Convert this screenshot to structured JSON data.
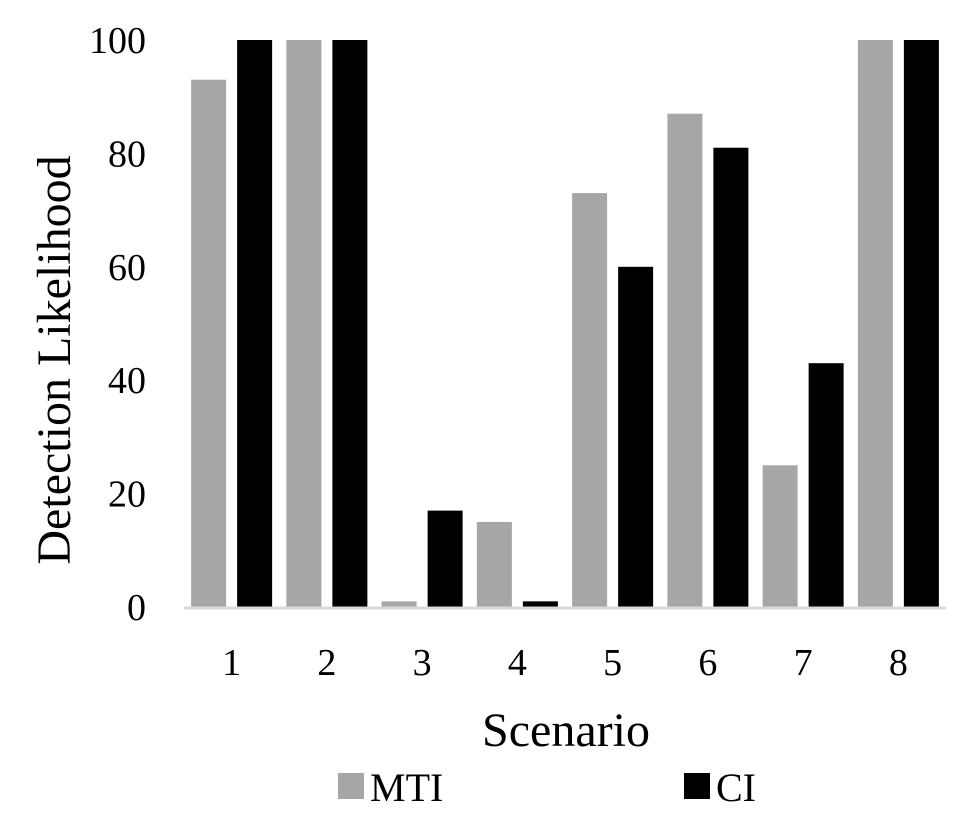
{
  "chart_data": {
    "type": "bar",
    "title": "",
    "xlabel": "Scenario",
    "ylabel": "Detection Likelihood",
    "categories": [
      "1",
      "2",
      "3",
      "4",
      "5",
      "6",
      "7",
      "8"
    ],
    "series": [
      {
        "name": "MTI",
        "color": "#a6a6a6",
        "values": [
          93,
          100,
          1,
          15,
          73,
          87,
          25,
          100
        ]
      },
      {
        "name": "CI",
        "color": "#000000",
        "values": [
          100,
          100,
          17,
          1,
          60,
          81,
          43,
          100
        ]
      }
    ],
    "ylim": [
      0,
      100
    ],
    "yticks": [
      "0",
      "20",
      "40",
      "60",
      "80",
      "100"
    ],
    "grid": false,
    "legend": "bottom"
  }
}
